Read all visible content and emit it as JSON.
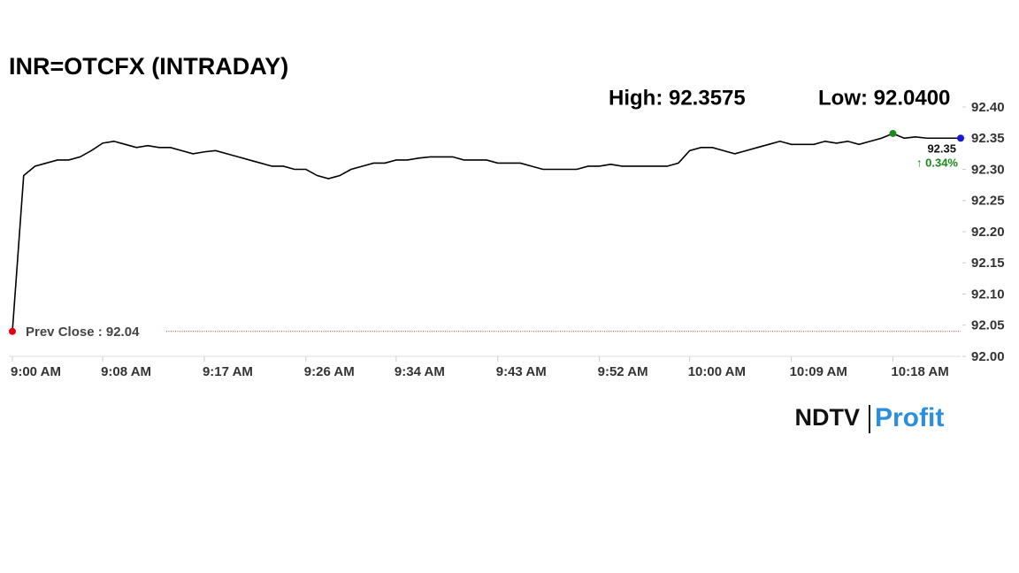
{
  "chart_data": {
    "type": "line",
    "title": "INR=OTCFX (INTRADAY)",
    "high_label": "High: 92.3575",
    "low_label": "Low: 92.0400",
    "last_label": "92.35",
    "change_label": "↑ 0.34%",
    "prev_close": {
      "value": 92.04,
      "label": "Prev Close : 92.04"
    },
    "brand": [
      "NDTV",
      "Profit"
    ],
    "xlim": [
      "9:00 AM",
      "10:24 AM"
    ],
    "xticks": [
      "9:00 AM",
      "9:08 AM",
      "9:17 AM",
      "9:26 AM",
      "9:34 AM",
      "9:43 AM",
      "9:52 AM",
      "10:00 AM",
      "10:09 AM",
      "10:18 AM"
    ],
    "ylim": [
      92.0,
      92.4
    ],
    "yticks": [
      {
        "value": 92.0,
        "label": "92.00"
      },
      {
        "value": 92.05,
        "label": "92.05"
      },
      {
        "value": 92.1,
        "label": "92.10"
      },
      {
        "value": 92.15,
        "label": "92.15"
      },
      {
        "value": 92.2,
        "label": "92.20"
      },
      {
        "value": 92.25,
        "label": "92.25"
      },
      {
        "value": 92.3,
        "label": "92.30"
      },
      {
        "value": 92.35,
        "label": "92.35"
      },
      {
        "value": 92.4,
        "label": "92.40"
      }
    ],
    "x": [
      "9:00 AM",
      "9:01 AM",
      "9:02 AM",
      "9:03 AM",
      "9:04 AM",
      "9:05 AM",
      "9:06 AM",
      "9:07 AM",
      "9:08 AM",
      "9:09 AM",
      "9:10 AM",
      "9:11 AM",
      "9:12 AM",
      "9:13 AM",
      "9:14 AM",
      "9:15 AM",
      "9:16 AM",
      "9:17 AM",
      "9:18 AM",
      "9:19 AM",
      "9:20 AM",
      "9:21 AM",
      "9:22 AM",
      "9:23 AM",
      "9:24 AM",
      "9:25 AM",
      "9:26 AM",
      "9:27 AM",
      "9:28 AM",
      "9:29 AM",
      "9:30 AM",
      "9:31 AM",
      "9:32 AM",
      "9:33 AM",
      "9:34 AM",
      "9:35 AM",
      "9:36 AM",
      "9:37 AM",
      "9:38 AM",
      "9:39 AM",
      "9:40 AM",
      "9:41 AM",
      "9:42 AM",
      "9:43 AM",
      "9:44 AM",
      "9:45 AM",
      "9:46 AM",
      "9:47 AM",
      "9:48 AM",
      "9:49 AM",
      "9:50 AM",
      "9:51 AM",
      "9:52 AM",
      "9:53 AM",
      "9:54 AM",
      "9:55 AM",
      "9:56 AM",
      "9:57 AM",
      "9:58 AM",
      "9:59 AM",
      "10:00 AM",
      "10:01 AM",
      "10:02 AM",
      "10:03 AM",
      "10:04 AM",
      "10:05 AM",
      "10:06 AM",
      "10:07 AM",
      "10:08 AM",
      "10:09 AM",
      "10:10 AM",
      "10:11 AM",
      "10:12 AM",
      "10:13 AM",
      "10:14 AM",
      "10:15 AM",
      "10:16 AM",
      "10:17 AM",
      "10:18 AM",
      "10:19 AM",
      "10:20 AM",
      "10:21 AM",
      "10:22 AM",
      "10:23 AM",
      "10:24 AM"
    ],
    "series": [
      {
        "name": "INR=OTCFX",
        "color": "#000000",
        "values": [
          92.04,
          92.29,
          92.305,
          92.31,
          92.315,
          92.315,
          92.32,
          92.33,
          92.342,
          92.345,
          92.34,
          92.335,
          92.338,
          92.335,
          92.335,
          92.33,
          92.325,
          92.328,
          92.33,
          92.325,
          92.32,
          92.315,
          92.31,
          92.305,
          92.305,
          92.3,
          92.3,
          92.29,
          92.285,
          92.29,
          92.3,
          92.305,
          92.31,
          92.31,
          92.315,
          92.315,
          92.318,
          92.32,
          92.32,
          92.32,
          92.315,
          92.315,
          92.315,
          92.31,
          92.31,
          92.31,
          92.305,
          92.3,
          92.3,
          92.3,
          92.3,
          92.305,
          92.305,
          92.308,
          92.305,
          92.305,
          92.305,
          92.305,
          92.305,
          92.31,
          92.33,
          92.335,
          92.335,
          92.33,
          92.325,
          92.33,
          92.335,
          92.34,
          92.345,
          92.34,
          92.34,
          92.34,
          92.345,
          92.342,
          92.345,
          92.34,
          92.345,
          92.35,
          92.3575,
          92.35,
          92.352,
          92.35,
          92.35,
          92.35,
          92.35
        ]
      }
    ]
  }
}
